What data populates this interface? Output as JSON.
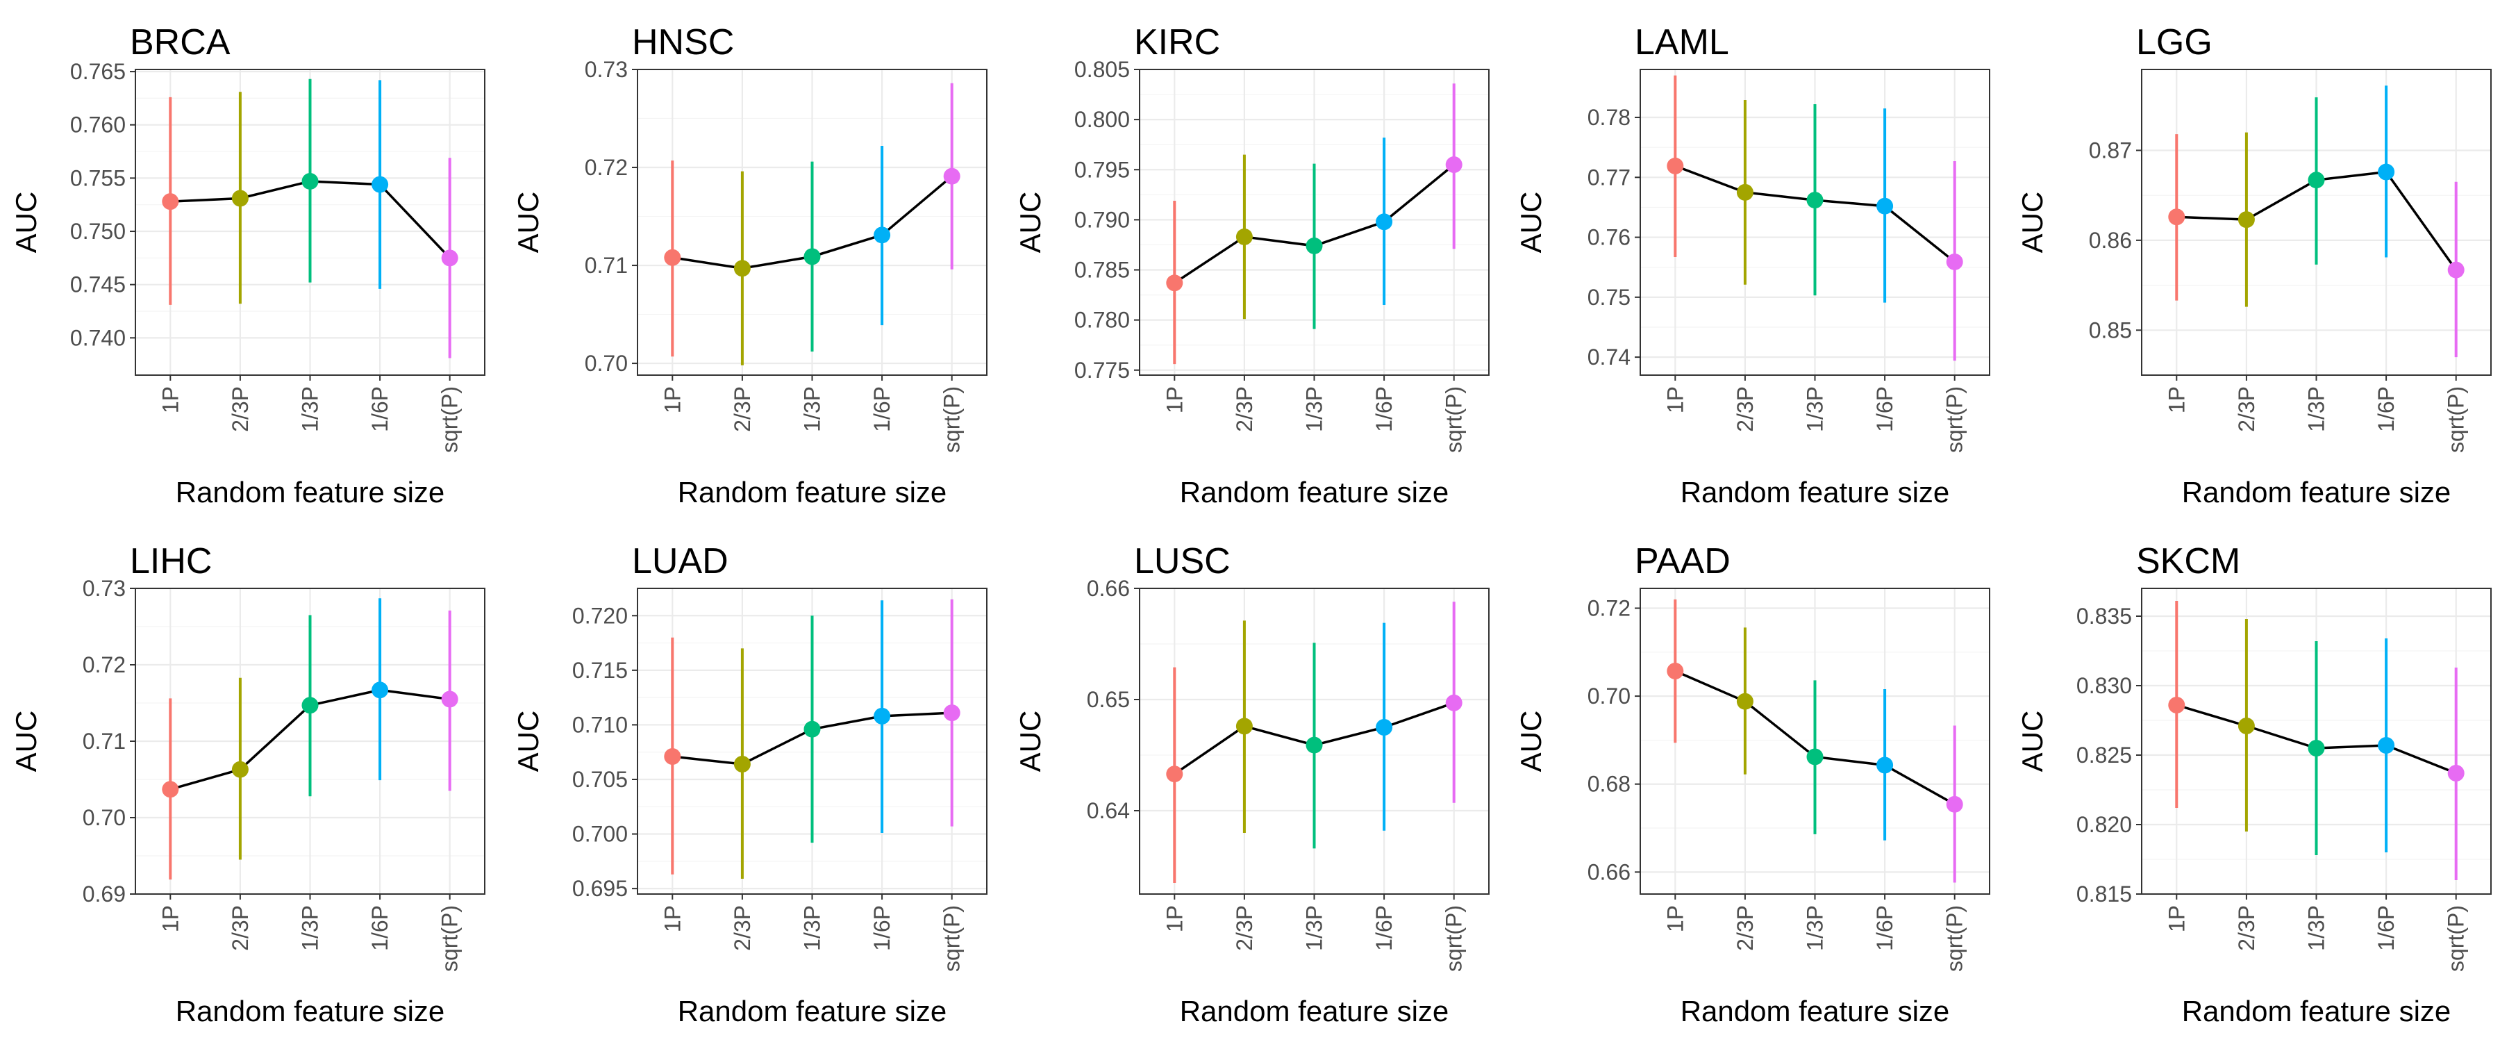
{
  "figure": {
    "x_label": "Random feature size",
    "y_label": "AUC",
    "series_colors": [
      "#F8766D",
      "#A3A500",
      "#00BF7D",
      "#00B0F6",
      "#E76BF3"
    ]
  },
  "chart_data": [
    {
      "type": "scatter",
      "title": "BRCA",
      "xlabel": "Random feature size",
      "ylabel": "AUC",
      "categories": [
        "1P",
        "2/3P",
        "1/3P",
        "1/6P",
        "sqrt(P)"
      ],
      "values": [
        0.7528,
        0.7531,
        0.7547,
        0.7544,
        0.7475
      ],
      "lower": [
        0.7431,
        0.7432,
        0.7452,
        0.7446,
        0.7381
      ],
      "upper": [
        0.7626,
        0.7631,
        0.7643,
        0.7642,
        0.7569
      ],
      "ylim": [
        0.7365,
        0.7652
      ],
      "yticks": [
        0.74,
        0.745,
        0.75,
        0.755,
        0.76,
        0.765
      ],
      "ytick_labels": [
        "0.740",
        "0.745",
        "0.750",
        "0.755",
        "0.760",
        "0.765"
      ]
    },
    {
      "type": "scatter",
      "title": "HNSC",
      "xlabel": "Random feature size",
      "ylabel": "AUC",
      "categories": [
        "1P",
        "2/3P",
        "1/3P",
        "1/6P",
        "sqrt(P)"
      ],
      "values": [
        0.7108,
        0.7097,
        0.7109,
        0.7131,
        0.7191
      ],
      "lower": [
        0.7007,
        0.6998,
        0.7012,
        0.7039,
        0.7096
      ],
      "upper": [
        0.7207,
        0.7196,
        0.7206,
        0.7222,
        0.7286
      ],
      "ylim": [
        0.6988,
        0.73
      ],
      "yticks": [
        0.7,
        0.71,
        0.72,
        0.73
      ],
      "ytick_labels": [
        "0.70",
        "0.71",
        "0.72",
        "0.73"
      ]
    },
    {
      "type": "scatter",
      "title": "KIRC",
      "xlabel": "Random feature size",
      "ylabel": "AUC",
      "categories": [
        "1P",
        "2/3P",
        "1/3P",
        "1/6P",
        "sqrt(P)"
      ],
      "values": [
        0.7837,
        0.7883,
        0.7874,
        0.7898,
        0.7955
      ],
      "lower": [
        0.7756,
        0.7801,
        0.7791,
        0.7815,
        0.7871
      ],
      "upper": [
        0.7919,
        0.7965,
        0.7956,
        0.7982,
        0.8036
      ],
      "ylim": [
        0.7745,
        0.805
      ],
      "yticks": [
        0.775,
        0.78,
        0.785,
        0.79,
        0.795,
        0.8,
        0.805
      ],
      "ytick_labels": [
        "0.775",
        "0.780",
        "0.785",
        "0.790",
        "0.795",
        "0.800",
        "0.805"
      ]
    },
    {
      "type": "scatter",
      "title": "LAML",
      "xlabel": "Random feature size",
      "ylabel": "AUC",
      "categories": [
        "1P",
        "2/3P",
        "1/3P",
        "1/6P",
        "sqrt(P)"
      ],
      "values": [
        0.7719,
        0.7675,
        0.7662,
        0.7652,
        0.7559
      ],
      "lower": [
        0.7567,
        0.7521,
        0.7503,
        0.7491,
        0.7394
      ],
      "upper": [
        0.787,
        0.7829,
        0.7822,
        0.7815,
        0.7727
      ],
      "ylim": [
        0.737,
        0.788
      ],
      "yticks": [
        0.74,
        0.75,
        0.76,
        0.77,
        0.78
      ],
      "ytick_labels": [
        "0.74",
        "0.75",
        "0.76",
        "0.77",
        "0.78"
      ]
    },
    {
      "type": "scatter",
      "title": "LGG",
      "xlabel": "Random feature size",
      "ylabel": "AUC",
      "categories": [
        "1P",
        "2/3P",
        "1/3P",
        "1/6P",
        "sqrt(P)"
      ],
      "values": [
        0.8626,
        0.8623,
        0.8667,
        0.8676,
        0.8567
      ],
      "lower": [
        0.8533,
        0.8526,
        0.8573,
        0.8581,
        0.847
      ],
      "upper": [
        0.8718,
        0.872,
        0.8759,
        0.8772,
        0.8665
      ],
      "ylim": [
        0.845,
        0.879
      ],
      "yticks": [
        0.85,
        0.86,
        0.87
      ],
      "ytick_labels": [
        "0.85",
        "0.86",
        "0.87"
      ]
    },
    {
      "type": "scatter",
      "title": "LIHC",
      "xlabel": "Random feature size",
      "ylabel": "AUC",
      "categories": [
        "1P",
        "2/3P",
        "1/3P",
        "1/6P",
        "sqrt(P)"
      ],
      "values": [
        0.7037,
        0.7063,
        0.7147,
        0.7167,
        0.7155
      ],
      "lower": [
        0.6919,
        0.6945,
        0.7028,
        0.7049,
        0.7035
      ],
      "upper": [
        0.7156,
        0.7183,
        0.7265,
        0.7287,
        0.7271
      ],
      "ylim": [
        0.69,
        0.73
      ],
      "yticks": [
        0.69,
        0.7,
        0.71,
        0.72,
        0.73
      ],
      "ytick_labels": [
        "0.69",
        "0.70",
        "0.71",
        "0.72",
        "0.73"
      ]
    },
    {
      "type": "scatter",
      "title": "LUAD",
      "xlabel": "Random feature size",
      "ylabel": "AUC",
      "categories": [
        "1P",
        "2/3P",
        "1/3P",
        "1/6P",
        "sqrt(P)"
      ],
      "values": [
        0.7071,
        0.7064,
        0.7096,
        0.7108,
        0.7111
      ],
      "lower": [
        0.6963,
        0.6959,
        0.6992,
        0.7001,
        0.7007
      ],
      "upper": [
        0.718,
        0.717,
        0.72,
        0.7214,
        0.7215
      ],
      "ylim": [
        0.6945,
        0.7225
      ],
      "yticks": [
        0.695,
        0.7,
        0.705,
        0.71,
        0.715,
        0.72
      ],
      "ytick_labels": [
        "0.695",
        "0.700",
        "0.705",
        "0.710",
        "0.715",
        "0.720"
      ]
    },
    {
      "type": "scatter",
      "title": "LUSC",
      "xlabel": "Random feature size",
      "ylabel": "AUC",
      "categories": [
        "1P",
        "2/3P",
        "1/3P",
        "1/6P",
        "sqrt(P)"
      ],
      "values": [
        0.6433,
        0.6476,
        0.6459,
        0.6475,
        0.6497
      ],
      "lower": [
        0.6335,
        0.638,
        0.6366,
        0.6382,
        0.6407
      ],
      "upper": [
        0.6529,
        0.6571,
        0.6551,
        0.6569,
        0.6588
      ],
      "ylim": [
        0.6325,
        0.66
      ],
      "yticks": [
        0.64,
        0.65,
        0.66
      ],
      "ytick_labels": [
        "0.64",
        "0.65",
        "0.66"
      ]
    },
    {
      "type": "scatter",
      "title": "PAAD",
      "xlabel": "Random feature size",
      "ylabel": "AUC",
      "categories": [
        "1P",
        "2/3P",
        "1/3P",
        "1/6P",
        "sqrt(P)"
      ],
      "values": [
        0.7057,
        0.6988,
        0.6862,
        0.6843,
        0.6754
      ],
      "lower": [
        0.6894,
        0.6822,
        0.6686,
        0.6672,
        0.6576
      ],
      "upper": [
        0.722,
        0.7156,
        0.7036,
        0.7016,
        0.6933
      ],
      "ylim": [
        0.655,
        0.7245
      ],
      "yticks": [
        0.66,
        0.68,
        0.7,
        0.72
      ],
      "ytick_labels": [
        "0.66",
        "0.68",
        "0.70",
        "0.72"
      ]
    },
    {
      "type": "scatter",
      "title": "SKCM",
      "xlabel": "Random feature size",
      "ylabel": "AUC",
      "categories": [
        "1P",
        "2/3P",
        "1/3P",
        "1/6P",
        "sqrt(P)"
      ],
      "values": [
        0.8286,
        0.8271,
        0.8255,
        0.8257,
        0.8237
      ],
      "lower": [
        0.8212,
        0.8195,
        0.8178,
        0.818,
        0.816
      ],
      "upper": [
        0.8361,
        0.8348,
        0.8332,
        0.8334,
        0.8313
      ],
      "ylim": [
        0.815,
        0.837
      ],
      "yticks": [
        0.815,
        0.82,
        0.825,
        0.83,
        0.835
      ],
      "ytick_labels": [
        "0.815",
        "0.820",
        "0.825",
        "0.830",
        "0.835"
      ]
    }
  ]
}
